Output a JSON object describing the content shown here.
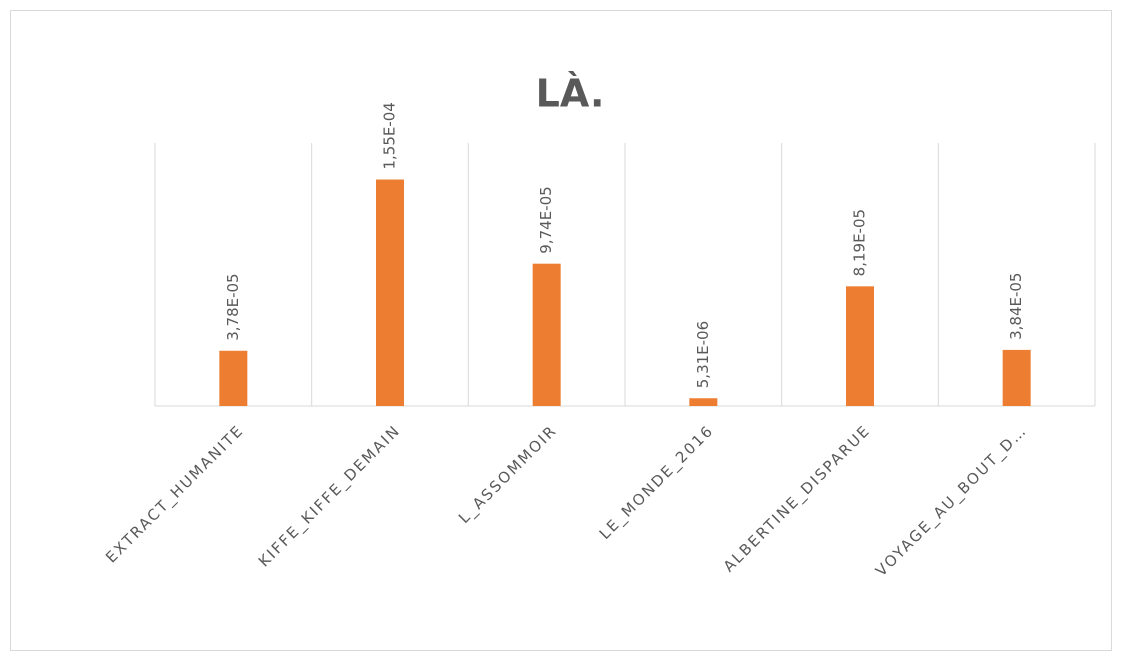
{
  "chart_data": {
    "type": "bar",
    "title": "LÀ.",
    "categories": [
      "EXTRACT_HUMANITE",
      "KIFFE_KIFFE_DEMAIN",
      "L_ASSOMMOIR",
      "LE_MONDE_2016",
      "ALBERTINE_DISPARUE",
      "VOYAGE_AU_BOUT_D…"
    ],
    "values": [
      3.78e-05,
      0.000155,
      9.74e-05,
      5.31e-06,
      8.19e-05,
      3.84e-05
    ],
    "value_labels": [
      "3,78E-05",
      "1,55E-04",
      "9,74E-05",
      "5,31E-06",
      "8,19E-05",
      "3,84E-05"
    ],
    "color": "#ed7d31",
    "ylim": [
      0,
      0.00018
    ]
  }
}
